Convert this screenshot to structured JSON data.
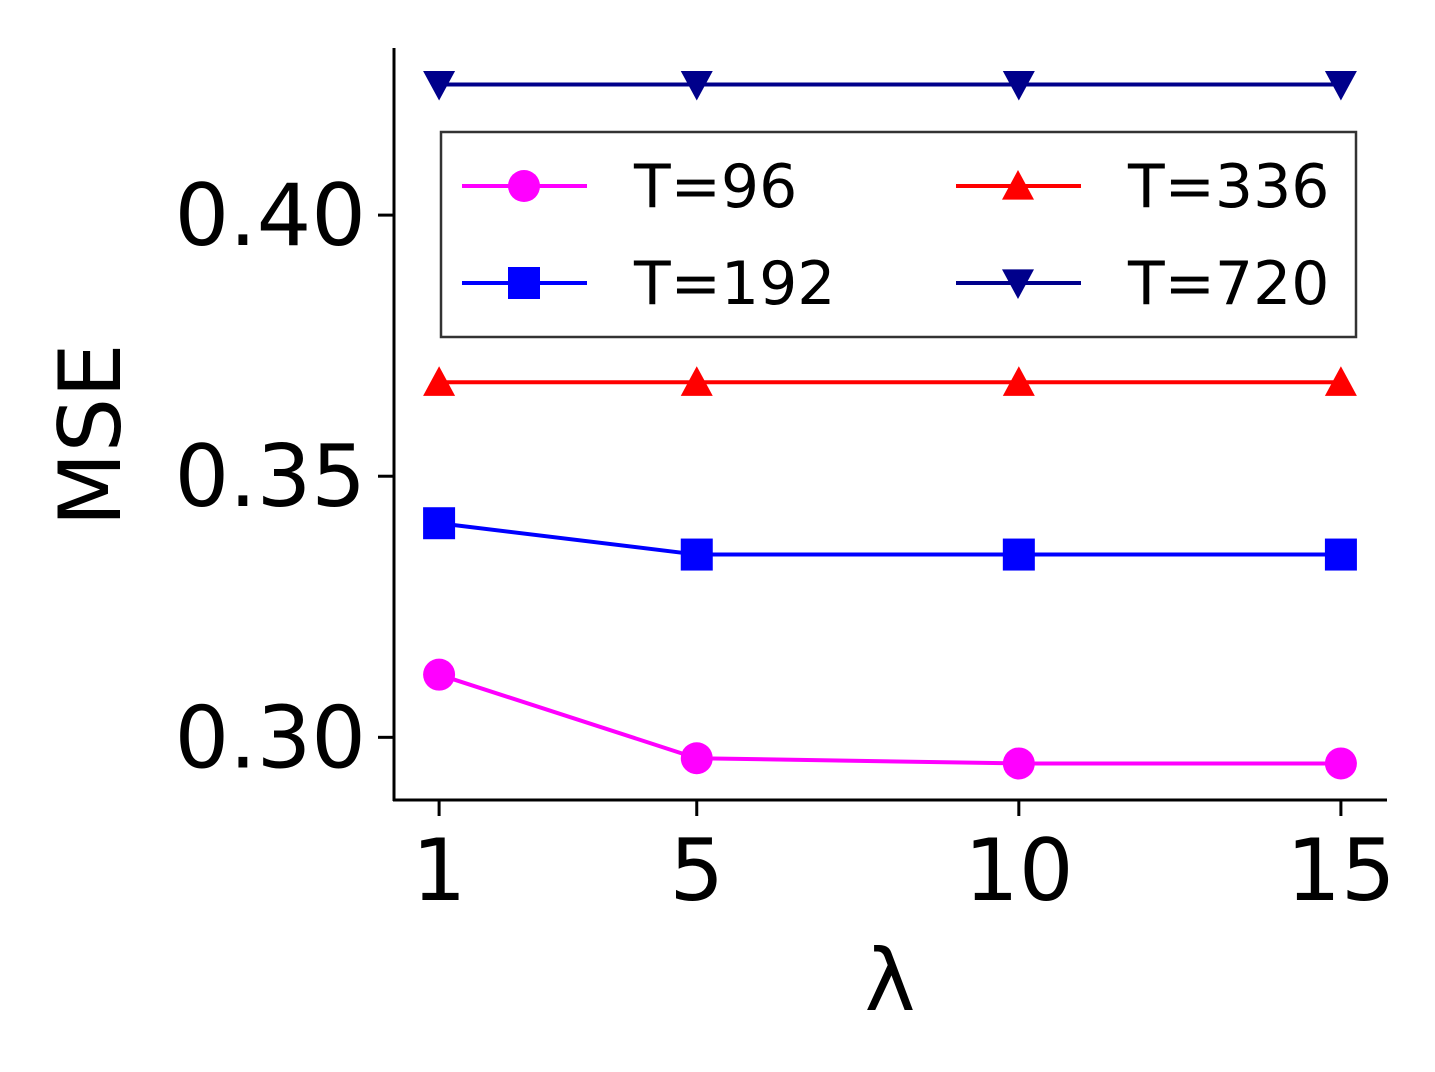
{
  "chart_data": {
    "type": "line",
    "title": "",
    "xlabel": "λ",
    "ylabel": "MSE",
    "x": [
      1,
      5,
      10,
      15
    ],
    "xticks": [
      "1",
      "5",
      "10",
      "15"
    ],
    "yticks": [
      "0.30",
      "0.35",
      "0.40"
    ],
    "ylim": [
      0.288,
      0.432
    ],
    "xlim": [
      0.3,
      15.7
    ],
    "grid": false,
    "legend": {
      "position": "upper",
      "columns": 2
    },
    "series": [
      {
        "name": "T=96",
        "color": "#ff00ff",
        "marker": "circle",
        "values": [
          0.312,
          0.296,
          0.295,
          0.295
        ]
      },
      {
        "name": "T=192",
        "color": "#0000ff",
        "marker": "square",
        "values": [
          0.341,
          0.335,
          0.335,
          0.335
        ]
      },
      {
        "name": "T=336",
        "color": "#ff0000",
        "marker": "triangle-up",
        "values": [
          0.368,
          0.368,
          0.368,
          0.368
        ]
      },
      {
        "name": "T=720",
        "color": "#00008b",
        "marker": "triangle-down",
        "values": [
          0.425,
          0.425,
          0.425,
          0.425
        ]
      }
    ]
  }
}
